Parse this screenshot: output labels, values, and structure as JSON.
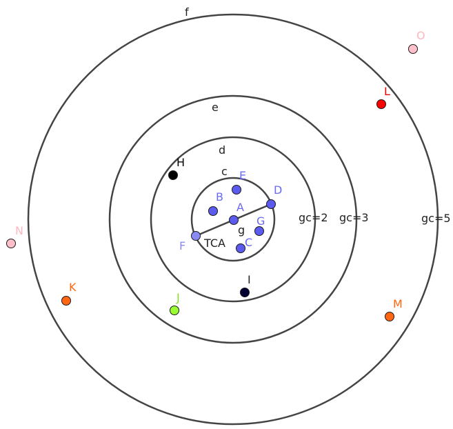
{
  "canvas": {
    "background": "#ffffff",
    "stroke_color": "#444444"
  },
  "circles": {
    "c": {
      "name": "c"
    },
    "d": {
      "name": "d"
    },
    "e": {
      "name": "e"
    },
    "f": {
      "name": "f"
    }
  },
  "annotations": {
    "gc2": "gc=2",
    "gc3": "gc=3",
    "gc5": "gc=5",
    "tca": "TCA",
    "g": "g"
  },
  "points": {
    "A": {
      "label": "A",
      "color": "#5b5bf0",
      "label_color": "#6a6af2"
    },
    "B": {
      "label": "B",
      "color": "#5b5bf0",
      "label_color": "#6a6af2"
    },
    "C": {
      "label": "C",
      "color": "#5b5bf0",
      "label_color": "#6a6af2"
    },
    "D": {
      "label": "D",
      "color": "#5b5bf0",
      "label_color": "#6a6af2"
    },
    "E": {
      "label": "E",
      "color": "#5b5bf0",
      "label_color": "#6a6af2"
    },
    "F": {
      "label": "F",
      "color": "#8a8af5",
      "label_color": "#8a8af5"
    },
    "G": {
      "label": "G",
      "color": "#5b5bf0",
      "label_color": "#6a6af2"
    },
    "H": {
      "label": "H",
      "color": "#000000",
      "label_color": "#000000"
    },
    "I": {
      "label": "I",
      "color": "#000033",
      "label_color": "#222222"
    },
    "J": {
      "label": "J",
      "color": "#99ff33",
      "label_color": "#88dd22"
    },
    "K": {
      "label": "K",
      "color": "#ff6611",
      "label_color": "#ff6611"
    },
    "L": {
      "label": "L",
      "color": "#ff0000",
      "label_color": "#ee0000"
    },
    "M": {
      "label": "M",
      "color": "#ff6611",
      "label_color": "#ff6611"
    },
    "N": {
      "label": "N",
      "color": "#ffc0cb",
      "label_color": "#ffb6c1"
    },
    "O": {
      "label": "O",
      "color": "#ffc0cb",
      "label_color": "#ffb6c1"
    }
  }
}
